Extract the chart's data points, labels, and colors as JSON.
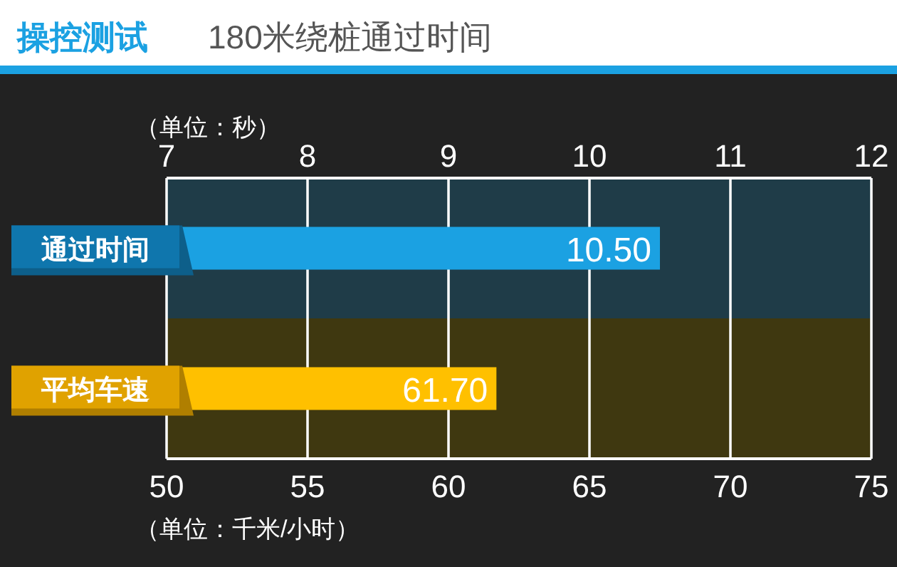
{
  "chart_data": {
    "type": "bar",
    "orientation": "horizontal",
    "title": "操控测试",
    "subtitle": "180米绕桩通过时间",
    "categories": [
      "通过时间",
      "平均车速"
    ],
    "series": [
      {
        "color": "#1ba1e2",
        "values": [
          10.5,
          null
        ],
        "axis": "x2"
      },
      {
        "color": "#ffc000",
        "values": [
          null,
          61.7
        ]
      }
    ],
    "value_labels": [
      "10.50",
      "61.70"
    ],
    "xlim": [
      50,
      75
    ],
    "xticks": [
      50,
      55,
      60,
      65,
      70,
      75
    ],
    "xlabel": "（单位：千米/小时）",
    "x2lim": [
      7,
      12
    ],
    "x2ticks": [
      7,
      8,
      9,
      10,
      11,
      12
    ],
    "x2label": "（单位：秒）",
    "grid": "x"
  }
}
